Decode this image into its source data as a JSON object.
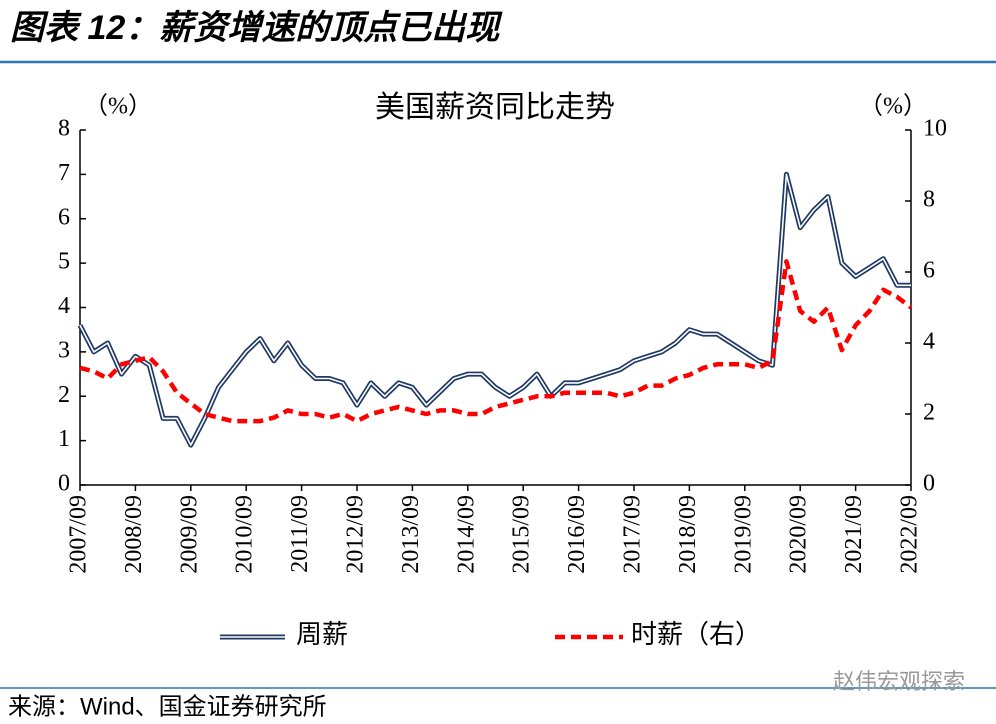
{
  "header": {
    "title": "图表 12：薪资增速的顶点已出现"
  },
  "chart_data": {
    "type": "line",
    "title": "美国薪资同比走势",
    "y_unit": "（%）",
    "y2_unit": "（%）",
    "categories": [
      "2007/09",
      null,
      null,
      null,
      "2008/09",
      null,
      null,
      null,
      "2009/09",
      null,
      null,
      null,
      "2010/09",
      null,
      null,
      null,
      "2011/09",
      null,
      null,
      null,
      "2012/09",
      null,
      null,
      null,
      "2013/09",
      null,
      null,
      null,
      "2014/09",
      null,
      null,
      null,
      "2015/09",
      null,
      null,
      null,
      "2016/09",
      null,
      null,
      null,
      "2017/09",
      null,
      null,
      null,
      "2018/09",
      null,
      null,
      null,
      "2019/09",
      null,
      null,
      null,
      "2020/09",
      null,
      null,
      null,
      "2021/09",
      null,
      null,
      null,
      "2022/09"
    ],
    "series": [
      {
        "name": "周薪",
        "color": "#1f3864",
        "axis": "y",
        "values": [
          3.6,
          3.0,
          3.2,
          2.5,
          2.9,
          2.7,
          1.5,
          1.5,
          0.9,
          1.5,
          2.2,
          2.6,
          3.0,
          3.3,
          2.8,
          3.2,
          2.7,
          2.4,
          2.4,
          2.3,
          1.8,
          2.3,
          2.0,
          2.3,
          2.2,
          1.8,
          2.1,
          2.4,
          2.5,
          2.5,
          2.2,
          2.0,
          2.2,
          2.5,
          2.0,
          2.3,
          2.3,
          2.4,
          2.5,
          2.6,
          2.8,
          2.9,
          3.0,
          3.2,
          3.5,
          3.4,
          3.4,
          3.2,
          3.0,
          2.8,
          2.7,
          7.0,
          5.8,
          6.2,
          6.5,
          5.0,
          4.7,
          4.9,
          5.1,
          4.5,
          4.5
        ]
      },
      {
        "name": "时薪（右）",
        "color": "#ff0000",
        "axis": "y2",
        "values": [
          3.3,
          3.2,
          3.0,
          3.4,
          3.5,
          3.6,
          3.2,
          2.6,
          2.3,
          2.0,
          1.9,
          1.8,
          1.8,
          1.8,
          1.9,
          2.1,
          2.0,
          2.0,
          1.9,
          2.0,
          1.8,
          2.0,
          2.1,
          2.2,
          2.1,
          2.0,
          2.1,
          2.1,
          2.0,
          2.0,
          2.2,
          2.3,
          2.4,
          2.5,
          2.5,
          2.6,
          2.6,
          2.6,
          2.6,
          2.5,
          2.6,
          2.8,
          2.8,
          3.0,
          3.1,
          3.3,
          3.4,
          3.4,
          3.4,
          3.3,
          3.5,
          6.3,
          4.9,
          4.6,
          5.0,
          3.8,
          4.5,
          4.9,
          5.5,
          5.3,
          5.0
        ]
      }
    ],
    "ylim": [
      0,
      8
    ],
    "yticks": [
      0,
      1,
      2,
      3,
      4,
      5,
      6,
      7,
      8
    ],
    "y2lim": [
      0,
      10
    ],
    "y2ticks": [
      0,
      2,
      4,
      6,
      8,
      10
    ],
    "legend": "bottom"
  },
  "footer": {
    "source": "来源：Wind、国金证券研究所",
    "watermark": "赵伟宏观探索"
  }
}
